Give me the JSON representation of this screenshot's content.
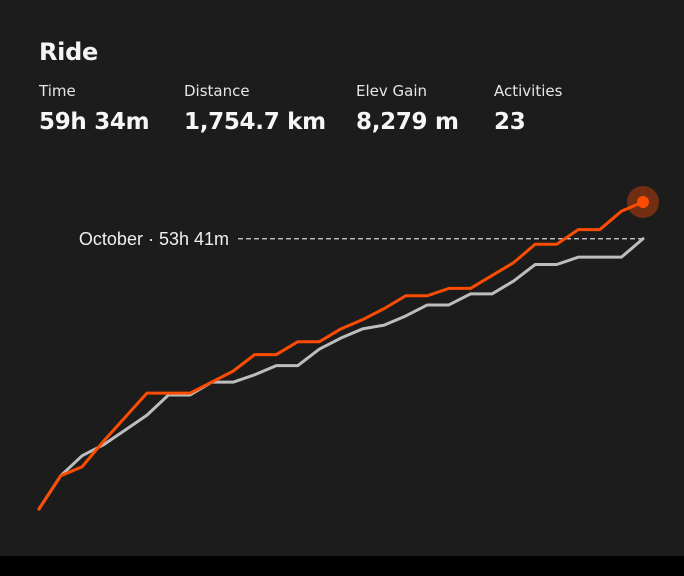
{
  "sport": "Ride",
  "stats": [
    {
      "label": "Time",
      "value": "59h 34m"
    },
    {
      "label": "Distance",
      "value": "1,754.7 km"
    },
    {
      "label": "Elev Gain",
      "value": "8,279 m"
    },
    {
      "label": "Activities",
      "value": "23"
    }
  ],
  "colors": {
    "current": "#fc4c02",
    "previous": "#bdbdbd",
    "background": "#1c1c1c"
  },
  "chart_data": {
    "type": "line",
    "annotation": "October · 53h 41m",
    "series": [
      {
        "values": [
          0.0,
          1.8,
          2.3,
          3.7,
          5.0,
          6.3,
          6.3,
          6.3,
          6.9,
          7.5,
          8.4,
          8.4,
          9.1,
          9.1,
          9.8,
          10.3,
          10.9,
          11.6,
          11.6,
          12.0,
          12.0,
          12.7,
          13.4,
          14.4,
          14.4,
          15.2,
          15.2,
          16.2,
          16.7
        ]
      },
      {
        "values": [
          0.0,
          1.8,
          2.9,
          3.5,
          4.3,
          5.1,
          6.2,
          6.2,
          6.9,
          6.9,
          7.3,
          7.8,
          7.8,
          8.7,
          9.3,
          9.8,
          10.0,
          10.5,
          11.1,
          11.1,
          11.7,
          11.7,
          12.4,
          13.3,
          13.3,
          13.7,
          13.7,
          13.7,
          14.7
        ]
      }
    ],
    "xlim": [
      0,
      28
    ],
    "ylim": [
      0,
      16.7
    ],
    "reference_value": 14.7,
    "grid": false
  }
}
